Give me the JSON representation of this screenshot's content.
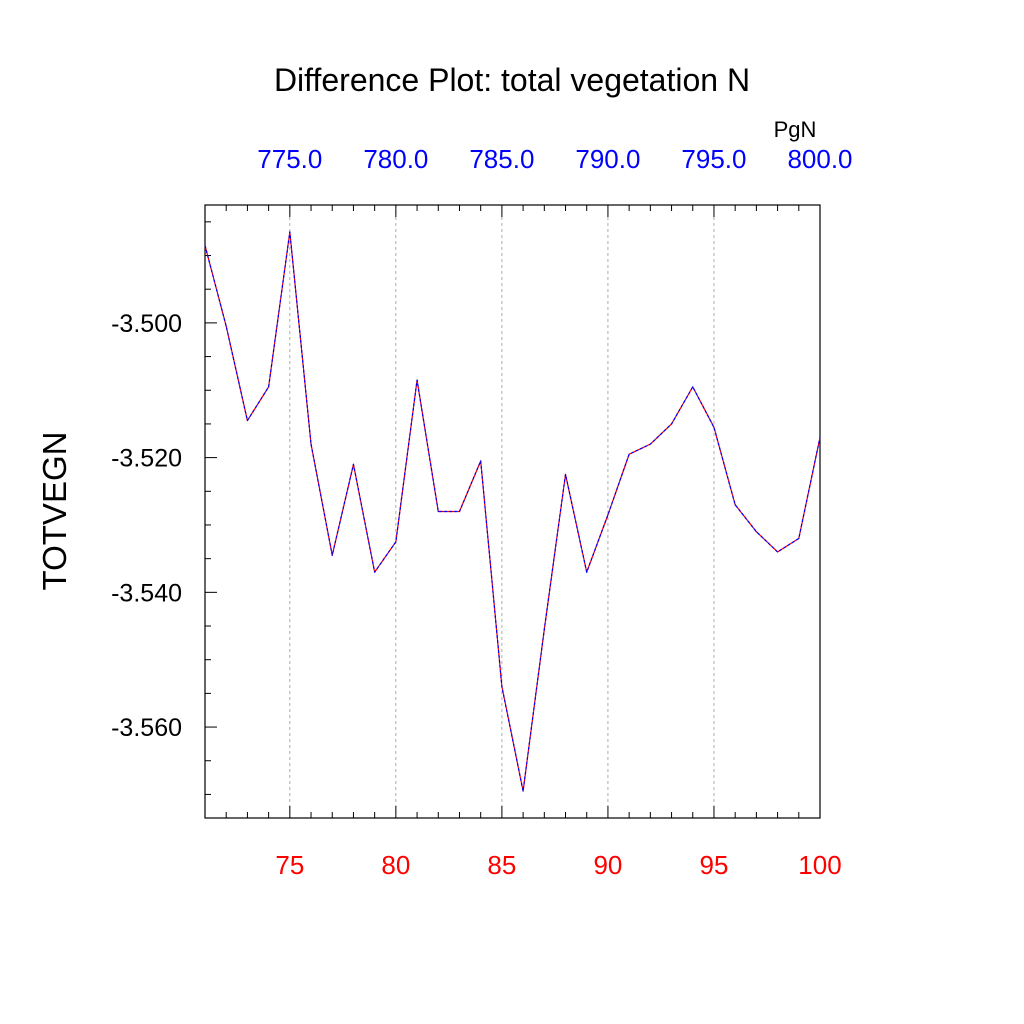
{
  "chart_data": {
    "type": "line",
    "title": "Difference Plot: total vegetation N",
    "ylabel": "TOTVEGN",
    "xlabel": "",
    "top_axis_units": "PgN",
    "x": [
      71,
      72,
      73,
      74,
      75,
      76,
      77,
      78,
      79,
      80,
      81,
      82,
      83,
      84,
      85,
      86,
      87,
      88,
      89,
      90,
      91,
      92,
      93,
      94,
      95,
      96,
      97,
      98,
      99,
      100
    ],
    "series": [
      {
        "values": [
          -3.4885,
          -3.5005,
          -3.5145,
          -3.5095,
          -3.4865,
          -3.518,
          -3.5345,
          -3.521,
          -3.537,
          -3.5325,
          -3.5085,
          -3.528,
          -3.528,
          -3.5205,
          -3.554,
          -3.5695,
          -3.5455,
          -3.5225,
          -3.537,
          -3.5285,
          -3.5195,
          -3.518,
          -3.515,
          -3.5095,
          -3.5155,
          -3.527,
          -3.531,
          -3.534,
          -3.532,
          -3.517
        ]
      }
    ],
    "xlim": [
      71,
      100
    ],
    "ylim": [
      -3.5735,
      -3.4825
    ],
    "x_ticks": [
      75,
      80,
      85,
      90,
      95,
      100
    ],
    "x_tick_labels": [
      "75",
      "80",
      "85",
      "90",
      "95",
      "100"
    ],
    "y_ticks": [
      -3.5,
      -3.52,
      -3.54,
      -3.56
    ],
    "y_tick_labels": [
      "-3.500",
      "-3.520",
      "-3.540",
      "-3.560"
    ],
    "top_ticks": [
      775,
      780,
      785,
      790,
      795,
      800
    ],
    "top_tick_labels": [
      "775.0",
      "780.0",
      "785.0",
      "790.0",
      "795.0",
      "800.0"
    ],
    "top_axis_offset": 700,
    "vertical_grid": true,
    "horizontal_grid": false,
    "colors": {
      "bottom_tick_labels": "#ff0000",
      "top_tick_labels": "#0000ff",
      "line_primary": "#ff0000",
      "line_overlay": "#0000ff",
      "axes": "#000000",
      "grid": "#999999"
    }
  }
}
